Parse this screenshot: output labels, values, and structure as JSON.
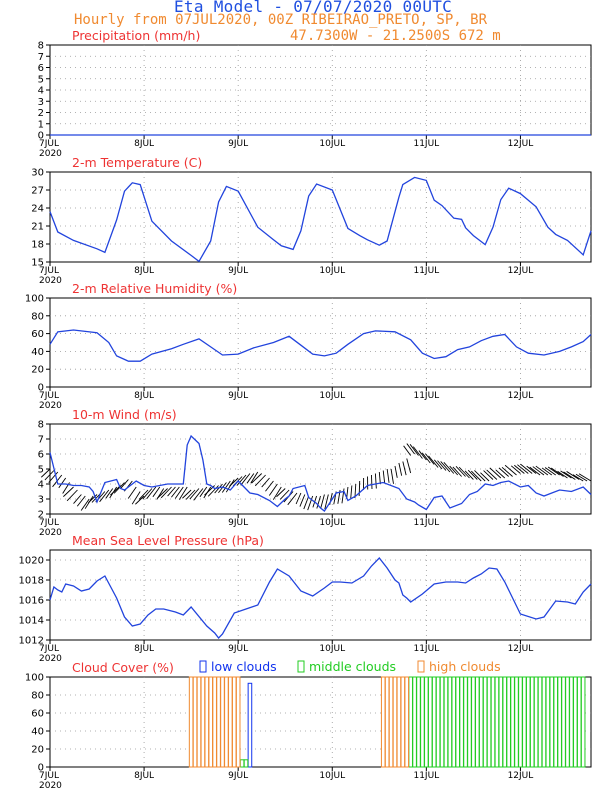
{
  "header": {
    "title": "Eta Model - 07/07/2020 00UTC",
    "subtitle": "Hourly from 07JUL2020, 00Z  RIBEIRAO_PRETO, SP, BR",
    "location": "47.7300W - 21.2500S     672  m"
  },
  "colors": {
    "line": "#2244dd",
    "title": "#ee3333",
    "low": "#1133ee",
    "middle": "#22cc22",
    "high": "#f08a30",
    "grid": "#999999"
  },
  "x_ticks": [
    "7JUL",
    "8JUL",
    "9JUL",
    "10JUL",
    "11JUL",
    "12JUL"
  ],
  "year_label": "2020",
  "chart_data": [
    {
      "name": "precipitation",
      "type": "line",
      "title": "Precipitation (mm/h)",
      "ylim": [
        0,
        8
      ],
      "yticks": [
        0,
        1,
        2,
        3,
        4,
        5,
        6,
        7,
        8
      ],
      "x": [
        0,
        138
      ],
      "values": [
        0,
        0
      ]
    },
    {
      "name": "temperature",
      "type": "line",
      "title": "2-m Temperature (C)",
      "ylim": [
        15,
        30
      ],
      "yticks": [
        15,
        18,
        21,
        24,
        27,
        30
      ],
      "x": [
        0,
        2,
        6,
        12,
        14,
        17,
        19,
        21,
        23,
        26,
        31,
        36,
        38,
        41,
        43,
        45,
        48,
        53,
        57,
        59,
        62,
        64,
        66,
        68,
        72,
        76,
        79,
        81,
        84,
        86,
        89,
        90,
        93,
        96,
        98,
        100,
        103,
        105,
        106,
        108,
        111,
        113,
        115,
        117,
        120,
        124,
        127,
        129,
        132,
        136,
        138
      ],
      "values": [
        23.4,
        20,
        18.6,
        17.2,
        16.6,
        22,
        26.8,
        28.2,
        27.9,
        21.8,
        18.5,
        16.1,
        15.1,
        18.5,
        25,
        27.6,
        26.8,
        20.8,
        18.7,
        17.7,
        17.1,
        20.2,
        26,
        28,
        27,
        20.6,
        19.4,
        18.7,
        17.8,
        18.5,
        25.8,
        27.9,
        29.1,
        28.6,
        25.3,
        24.4,
        22.3,
        22.1,
        20.7,
        19.4,
        17.9,
        20.8,
        25.4,
        27.3,
        26.4,
        24.2,
        20.8,
        19.6,
        18.6,
        16.2,
        20.2
      ]
    },
    {
      "name": "humidity",
      "type": "line",
      "title": "2-m Relative Humidity (%)",
      "ylim": [
        0,
        100
      ],
      "yticks": [
        0,
        20,
        40,
        60,
        80,
        100
      ],
      "x": [
        0,
        2,
        6,
        12,
        15,
        17,
        20,
        23,
        26,
        31,
        34,
        38,
        41,
        44,
        48,
        52,
        57,
        61,
        64,
        67,
        70,
        73,
        76,
        80,
        83,
        88,
        92,
        95,
        98,
        101,
        104,
        107,
        110,
        113,
        116,
        119,
        122,
        126,
        130,
        133,
        136,
        138
      ],
      "values": [
        48,
        62,
        64,
        61,
        50,
        35,
        29,
        29,
        37,
        43,
        48,
        54,
        45,
        36,
        37,
        44,
        50,
        57,
        47,
        37,
        35,
        38,
        48,
        60,
        63,
        62,
        53,
        38,
        32,
        34,
        42,
        45,
        52,
        57,
        59,
        45,
        38,
        36,
        40,
        45,
        51,
        59
      ],
      "arrows": [
        5,
        4.9,
        4.8,
        4.6,
        4.4,
        4.1,
        3.8,
        3.6,
        3.3,
        3.2,
        3,
        3.2,
        3.3,
        3.4,
        3.5,
        3.6,
        3.7,
        3.8,
        3.9,
        4.1,
        4.3,
        4.2,
        3.8,
        3.5,
        3.2,
        3.6,
        3.7,
        3.8,
        3.8,
        3.7,
        3.7,
        3.8,
        3.8,
        3.8,
        3.8,
        3.8,
        3.6,
        3.6,
        3.7,
        3.7,
        3.8,
        3.8,
        3.9,
        3.9,
        4,
        4.1,
        4.2,
        4.3,
        4.4,
        4.5,
        4.6,
        4.7,
        4.7,
        4.8,
        4.7,
        4.6,
        4.4,
        4.2,
        4,
        3.8,
        3.7,
        3.6,
        3.5,
        3.4,
        3.4,
        3.3,
        3.2,
        3.2,
        3.2,
        3.2,
        3.3,
        3.3,
        3.4,
        3.5,
        3.6,
        3.7,
        3.8,
        3.9,
        4,
        4.2,
        4.4,
        4.5,
        4.6,
        4.7,
        4.8,
        4.9,
        5,
        5,
        5.2,
        5.4,
        5.5,
        5.7,
        5.9,
        6,
        5.9,
        5.7,
        5.6,
        5.4,
        5.3,
        5.1,
        5,
        4.9,
        4.8,
        4.7,
        4.6,
        4.5,
        4.5,
        4.4,
        4.3,
        4.3,
        4.2,
        4.2,
        4.2,
        4.3,
        4.3,
        4.4,
        4.4,
        4.5,
        4.5,
        4.6,
        4.7,
        4.7,
        4.7,
        4.7,
        4.7,
        4.6,
        4.6,
        4.6,
        4.6,
        4.6,
        4.6,
        4.5,
        4.4,
        4.4,
        4.3,
        4.3,
        4.2,
        4.2,
        4.2
      ]
    },
    {
      "name": "wind",
      "type": "line",
      "title": "10-m Wind (m/s)",
      "ylim": [
        2,
        8
      ],
      "yticks": [
        2,
        3,
        4,
        5,
        6,
        7,
        8
      ],
      "x": [
        0,
        2,
        4,
        6,
        8,
        10,
        11,
        12,
        14,
        17,
        18,
        19,
        20,
        22,
        24,
        26,
        30,
        33,
        34,
        35,
        36,
        38,
        39,
        40,
        41,
        42,
        44,
        46,
        48,
        51,
        53,
        56,
        58,
        60,
        61,
        62,
        65,
        66,
        68,
        69,
        70,
        73,
        75,
        76,
        78,
        81,
        85,
        89,
        91,
        93,
        94,
        96,
        98,
        100,
        102,
        105,
        107,
        109,
        111,
        113,
        115,
        117,
        120,
        122,
        124,
        126,
        128,
        130,
        133,
        136,
        138
      ],
      "values": [
        6.1,
        4.0,
        4.0,
        3.9,
        3.9,
        3.8,
        3.5,
        2.8,
        4.1,
        4.3,
        3.7,
        3.6,
        3.8,
        4.2,
        3.9,
        3.8,
        4.0,
        4.0,
        4.0,
        6.6,
        7.2,
        6.7,
        5.6,
        4.0,
        3.9,
        3.7,
        3.8,
        3.6,
        4.2,
        3.4,
        3.3,
        2.9,
        2.5,
        3.0,
        3.2,
        3.7,
        3.9,
        3.1,
        2.7,
        2.4,
        2.2,
        3.4,
        3.5,
        2.9,
        3.2,
        3.9,
        4.1,
        3.7,
        3.0,
        2.8,
        2.6,
        2.3,
        3.1,
        3.2,
        2.4,
        2.7,
        3.3,
        3.5,
        4.0,
        3.9,
        4.1,
        4.2,
        3.8,
        3.9,
        3.4,
        3.2,
        3.4,
        3.6,
        3.5,
        3.8,
        3.3
      ]
    },
    {
      "name": "pressure",
      "type": "line",
      "title": "Mean Sea Level Pressure (hPa)",
      "ylim": [
        1012,
        1021
      ],
      "yticks": [
        1012,
        1014,
        1016,
        1018,
        1020
      ],
      "x": [
        0,
        1,
        2,
        3,
        4,
        6,
        8,
        10,
        12,
        14,
        17,
        19,
        21,
        23,
        25,
        27,
        29,
        32,
        34,
        36,
        40,
        42,
        43,
        44,
        47,
        50,
        53,
        56,
        58,
        61,
        64,
        67,
        70,
        72,
        74,
        77,
        80,
        82,
        84,
        86,
        88,
        89,
        90,
        91,
        92,
        95,
        98,
        101,
        102,
        104,
        106,
        108,
        110,
        112,
        114,
        116,
        120,
        124,
        126,
        129,
        132,
        134,
        136,
        138
      ],
      "values": [
        1016.0,
        1017.3,
        1017.0,
        1016.8,
        1017.6,
        1017.4,
        1016.9,
        1017.1,
        1017.9,
        1018.4,
        1016.2,
        1014.3,
        1013.4,
        1013.6,
        1014.5,
        1015.1,
        1015.1,
        1014.8,
        1014.5,
        1015.3,
        1013.4,
        1012.7,
        1012.2,
        1012.6,
        1014.7,
        1015.1,
        1015.5,
        1017.8,
        1019.1,
        1018.4,
        1016.9,
        1016.4,
        1017.2,
        1017.8,
        1017.8,
        1017.7,
        1018.4,
        1019.4,
        1020.2,
        1019.2,
        1018.0,
        1017.7,
        1016.5,
        1016.2,
        1015.8,
        1016.6,
        1017.6,
        1017.8,
        1017.8,
        1017.8,
        1017.7,
        1018.2,
        1018.6,
        1019.2,
        1019.1,
        1017.8,
        1014.6,
        1014.1,
        1014.3,
        1015.9,
        1015.8,
        1015.6,
        1016.8,
        1017.6
      ]
    },
    {
      "name": "clouds",
      "type": "bar",
      "title": "Cloud Cover (%)",
      "ylim": [
        0,
        100
      ],
      "yticks": [
        0,
        20,
        40,
        60,
        80,
        100
      ],
      "legend": [
        "low clouds",
        "middle clouds",
        "high clouds"
      ],
      "series": [
        {
          "name": "low clouds",
          "kind": "low",
          "x": [
            51
          ],
          "values": [
            93
          ]
        },
        {
          "name": "middle clouds",
          "kind": "middle",
          "x": [
            48,
            49,
            50,
            88,
            89,
            90,
            91,
            92,
            93,
            94,
            95,
            96,
            97,
            98,
            99,
            100,
            101,
            102,
            103,
            104,
            105,
            106,
            107,
            108,
            109,
            110,
            111,
            112,
            113,
            114,
            115,
            116,
            117,
            118,
            119,
            120,
            121,
            122,
            123,
            124,
            125,
            126,
            127,
            128,
            129,
            130,
            131,
            132,
            133,
            134,
            135,
            136
          ],
          "values": [
            10,
            8,
            8,
            100,
            100,
            100,
            100,
            100,
            100,
            100,
            100,
            100,
            100,
            100,
            100,
            100,
            100,
            100,
            100,
            100,
            100,
            100,
            100,
            100,
            100,
            100,
            100,
            100,
            100,
            100,
            100,
            100,
            100,
            100,
            100,
            100,
            100,
            100,
            100,
            100,
            100,
            100,
            100,
            100,
            100,
            100,
            100,
            100,
            100,
            100,
            100,
            100
          ]
        },
        {
          "name": "high clouds",
          "kind": "high",
          "x": [
            20,
            21,
            22,
            23,
            24,
            25,
            26,
            27,
            28,
            29,
            30,
            31,
            32,
            33,
            34,
            35,
            36,
            37,
            38,
            39,
            40,
            41,
            42,
            43,
            44,
            45,
            46,
            47,
            48,
            49,
            50,
            51,
            52,
            53,
            54,
            55,
            56,
            57,
            58,
            59,
            60,
            61,
            62,
            63,
            64,
            65,
            66,
            67,
            68,
            69,
            70,
            71,
            72,
            73,
            74,
            75,
            76,
            77,
            78,
            79,
            80,
            81,
            82,
            83,
            84,
            85,
            86,
            87
          ],
          "values": [
            0,
            0,
            0,
            0,
            0,
            0,
            0,
            0,
            0,
            0,
            0,
            0,
            0,
            0,
            0,
            0,
            100,
            100,
            100,
            100,
            100,
            100,
            100,
            100,
            100,
            100,
            100,
            100,
            100,
            0,
            0,
            0,
            0,
            0,
            0,
            0,
            0,
            0,
            0,
            0,
            0,
            0,
            0,
            0,
            0,
            0,
            0,
            0,
            0,
            0,
            0,
            0,
            0,
            0,
            0,
            0,
            0,
            0,
            0,
            0,
            0,
            0,
            0,
            0,
            0,
            100,
            100,
            100
          ]
        }
      ],
      "high_extra_x": [
        88,
        89,
        90,
        91
      ],
      "high_extra_values": [
        100,
        100,
        100,
        100
      ]
    }
  ]
}
